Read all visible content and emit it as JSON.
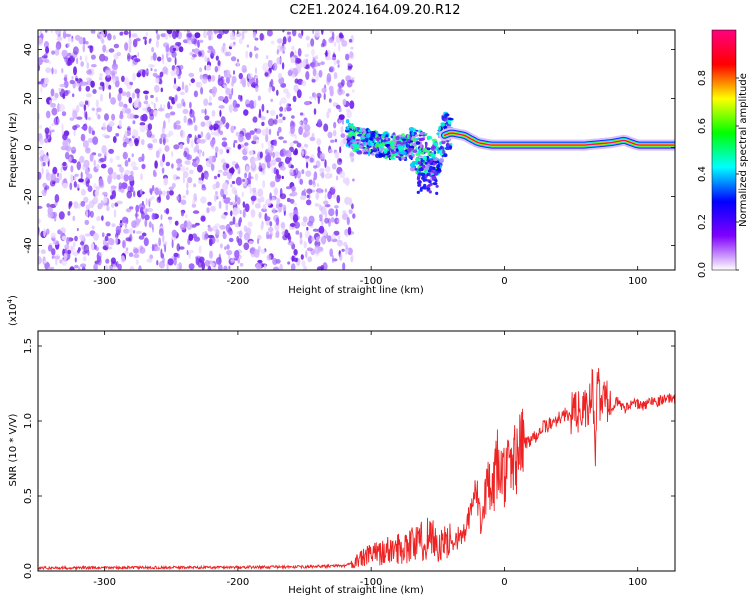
{
  "title": "C2E1.2024.164.09.20.R12",
  "chart_data": [
    {
      "type": "heatmap",
      "xlabel": "Height of straight line (km)",
      "ylabel": "Frequency (Hz)",
      "xlim": [
        -350,
        128
      ],
      "ylim": [
        -50,
        48
      ],
      "xticks": [
        -300,
        -200,
        -100,
        0,
        100
      ],
      "yticks": [
        -40,
        -20,
        0,
        20,
        40
      ],
      "noise_region_x": [
        -350,
        -113
      ],
      "signal_centerline": [
        [
          -118,
          6
        ],
        [
          -110,
          3
        ],
        [
          -100,
          2
        ],
        [
          -90,
          1
        ],
        [
          -80,
          0
        ],
        [
          -70,
          0
        ],
        [
          -60,
          -3
        ],
        [
          -52,
          -6
        ],
        [
          -45,
          5
        ],
        [
          -40,
          6
        ],
        [
          -30,
          5
        ],
        [
          -20,
          2
        ],
        [
          -10,
          1
        ],
        [
          0,
          1
        ],
        [
          20,
          1
        ],
        [
          40,
          1
        ],
        [
          60,
          1
        ],
        [
          80,
          2
        ],
        [
          90,
          3
        ],
        [
          100,
          1
        ],
        [
          110,
          1
        ],
        [
          128,
          1
        ]
      ],
      "colorbar": {
        "label": "Normalized spectral amplitude",
        "range": [
          0.0,
          1.0
        ],
        "ticks": [
          0.0,
          0.2,
          0.4,
          0.6,
          0.8
        ],
        "colors": [
          "#ffffff",
          "#7f00ff",
          "#0000ff",
          "#00ffff",
          "#00ff00",
          "#ffff00",
          "#ff0000",
          "#ff0080"
        ]
      }
    },
    {
      "type": "line",
      "xlabel": "Height of straight line (km)",
      "ylabel": "SNR (10 * V/V)",
      "scale_label": "(x10",
      "scale_exp": "4",
      "scale_close": ")",
      "xlim": [
        -350,
        128
      ],
      "ylim": [
        0,
        16000
      ],
      "xticks": [
        -300,
        -200,
        -100,
        0,
        100
      ],
      "yticks": [
        0,
        5000,
        10000,
        15000
      ],
      "ytick_labels": [
        "0.0",
        "0.5",
        "1.0",
        "1.5"
      ],
      "color": "#ee2222",
      "series": [
        {
          "x": [
            -350,
            -300,
            -200,
            -150,
            -120,
            -110,
            -100,
            -90,
            -80,
            -70,
            -60,
            -55,
            -50,
            -45,
            -40,
            -35,
            -30,
            -25,
            -22,
            -20,
            -18,
            -15,
            -12,
            -10,
            -8,
            -5,
            -2,
            0,
            5,
            10,
            15,
            20,
            25,
            30,
            35,
            40,
            45,
            50,
            55,
            60,
            62,
            64,
            66,
            68,
            70,
            72,
            75,
            80,
            85,
            90,
            95,
            100,
            105,
            110,
            115,
            120,
            128
          ],
          "y": [
            200,
            220,
            250,
            280,
            350,
            700,
            1100,
            1300,
            1500,
            1800,
            2000,
            2600,
            1500,
            1800,
            2000,
            2200,
            2500,
            3800,
            5500,
            4500,
            3500,
            5200,
            5500,
            5000,
            5500,
            7200,
            6200,
            6500,
            6800,
            8000,
            8500,
            8800,
            9200,
            9600,
            9800,
            10200,
            10400,
            10500,
            10600,
            10800,
            10500,
            11200,
            12500,
            7500,
            12800,
            11200,
            11500,
            11000,
            11300,
            10800,
            11200,
            11100,
            11000,
            11400,
            11300,
            11500,
            11500
          ]
        }
      ]
    }
  ]
}
